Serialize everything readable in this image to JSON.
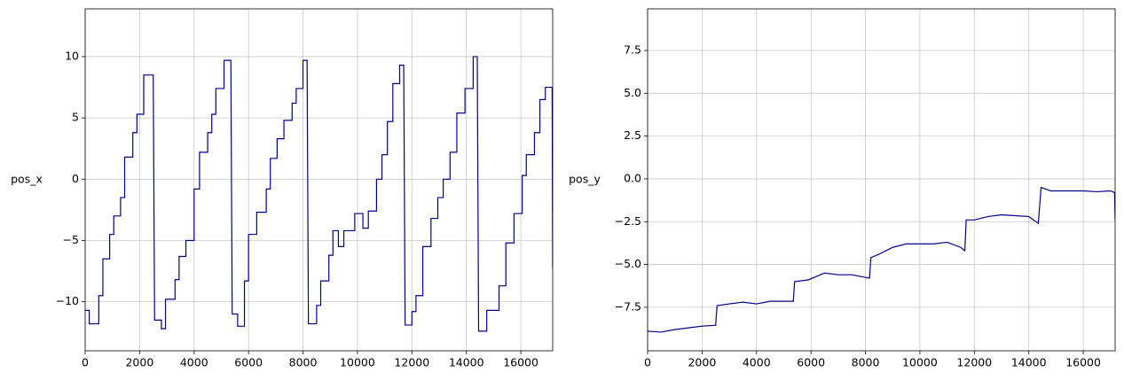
{
  "chart_data": [
    {
      "type": "line",
      "y_label": "pos_x",
      "color": "#00008b",
      "grid": true,
      "xlim": [
        0,
        17170
      ],
      "xticks": [
        0,
        2000,
        4000,
        6000,
        8000,
        10000,
        12000,
        14000,
        16000
      ],
      "ylim": [
        -14,
        13.9
      ],
      "yticks": [
        {
          "value": -10,
          "label": "−10"
        },
        {
          "value": -5,
          "label": "−5"
        },
        0,
        5,
        10
      ],
      "x": [
        0,
        150,
        150,
        500,
        500,
        650,
        650,
        900,
        900,
        1050,
        1050,
        1300,
        1300,
        1450,
        1450,
        1750,
        1750,
        1900,
        1900,
        2150,
        2150,
        2500,
        2550,
        2800,
        2800,
        2950,
        2950,
        3300,
        3300,
        3450,
        3450,
        3700,
        3700,
        4000,
        4000,
        4200,
        4200,
        4500,
        4500,
        4650,
        4650,
        4800,
        4800,
        5100,
        5100,
        5350,
        5400,
        5600,
        5600,
        5850,
        5850,
        6000,
        6000,
        6300,
        6300,
        6650,
        6650,
        6800,
        6800,
        7050,
        7050,
        7300,
        7300,
        7600,
        7600,
        7750,
        7750,
        8000,
        8000,
        8150,
        8200,
        8500,
        8500,
        8650,
        8650,
        8950,
        8950,
        9100,
        9100,
        9300,
        9300,
        9500,
        9500,
        9900,
        9900,
        10200,
        10200,
        10400,
        10400,
        10700,
        10700,
        10900,
        10900,
        11100,
        11100,
        11300,
        11300,
        11550,
        11550,
        11700,
        11750,
        12000,
        12000,
        12150,
        12150,
        12400,
        12400,
        12700,
        12700,
        12950,
        12950,
        13150,
        13150,
        13400,
        13400,
        13650,
        13650,
        13950,
        13950,
        14250,
        14250,
        14400,
        14450,
        14750,
        14750,
        15200,
        15200,
        15450,
        15450,
        15750,
        15750,
        16050,
        16050,
        16200,
        16200,
        16500,
        16500,
        16700,
        16700,
        16900,
        16900,
        17150,
        17170
      ],
      "values": [
        -10.7,
        -10.7,
        -11.8,
        -11.8,
        -9.5,
        -9.5,
        -6.5,
        -6.5,
        -4.5,
        -4.5,
        -3,
        -3,
        -1.5,
        -1.5,
        1.8,
        1.8,
        3.8,
        3.8,
        5.3,
        5.3,
        8.5,
        8.5,
        -11.5,
        -11.5,
        -12.2,
        -12.2,
        -9.8,
        -9.8,
        -8.2,
        -8.2,
        -6.3,
        -6.3,
        -5,
        -5,
        -0.8,
        -0.8,
        2.2,
        2.2,
        3.8,
        3.8,
        5.3,
        5.3,
        7.4,
        7.4,
        9.7,
        9.7,
        -11,
        -11,
        -12,
        -12,
        -8.3,
        -8.3,
        -4.5,
        -4.5,
        -2.7,
        -2.7,
        -0.8,
        -0.8,
        1.7,
        1.7,
        3.3,
        3.3,
        4.8,
        4.8,
        6.2,
        6.2,
        7.4,
        7.4,
        9.7,
        9.7,
        -11.8,
        -11.8,
        -10.3,
        -10.3,
        -8.3,
        -8.3,
        -6.2,
        -6.2,
        -4.2,
        -4.2,
        -5.5,
        -5.5,
        -4.2,
        -4.2,
        -2.8,
        -2.8,
        -4,
        -4,
        -2.6,
        -2.6,
        0,
        0,
        2,
        2,
        4.7,
        4.7,
        7.8,
        7.8,
        9.3,
        9.3,
        -11.9,
        -11.9,
        -10.8,
        -10.8,
        -9.5,
        -9.5,
        -5.5,
        -5.5,
        -3.2,
        -3.2,
        -1.5,
        -1.5,
        0,
        0,
        2.2,
        2.2,
        5.4,
        5.4,
        7.4,
        7.4,
        10,
        10,
        -12.4,
        -12.4,
        -10.7,
        -10.7,
        -8.7,
        -8.7,
        -5.2,
        -5.2,
        -2.8,
        -2.8,
        0.3,
        0.3,
        2,
        2,
        3.8,
        3.8,
        6.5,
        6.5,
        7.5,
        7.5,
        -7.3
      ]
    },
    {
      "type": "line",
      "y_label": "pos_y",
      "color": "#00008b",
      "grid": true,
      "xlim": [
        0,
        17170
      ],
      "xticks": [
        0,
        2000,
        4000,
        6000,
        8000,
        10000,
        12000,
        14000,
        16000
      ],
      "ylim": [
        -10.04,
        9.93
      ],
      "yticks": [
        {
          "value": -7.5,
          "label": "−7.5"
        },
        {
          "value": -5,
          "label": "−5.0"
        },
        {
          "value": -2.5,
          "label": "−2.5"
        },
        {
          "value": 0,
          "label": "0.0"
        },
        2.5,
        {
          "value": 5,
          "label": "5.0"
        },
        7.5
      ],
      "x": [
        0,
        500,
        1000,
        1500,
        2000,
        2500,
        2550,
        3000,
        3500,
        4000,
        4500,
        5350,
        5400,
        5900,
        6500,
        7000,
        7500,
        8150,
        8200,
        8500,
        9000,
        9500,
        10000,
        10500,
        11000,
        11500,
        11650,
        11700,
        12000,
        12500,
        13000,
        13500,
        14000,
        14350,
        14450,
        14800,
        15500,
        16000,
        16500,
        17000,
        17150,
        17170
      ],
      "values": [
        -8.9,
        -8.95,
        -8.8,
        -8.7,
        -8.6,
        -8.55,
        -7.4,
        -7.3,
        -7.2,
        -7.3,
        -7.15,
        -7.15,
        -6,
        -5.9,
        -5.5,
        -5.6,
        -5.6,
        -5.8,
        -4.6,
        -4.4,
        -4,
        -3.8,
        -3.8,
        -3.8,
        -3.7,
        -4,
        -4.2,
        -2.4,
        -2.4,
        -2.2,
        -2.1,
        -2.15,
        -2.2,
        -2.6,
        -0.5,
        -0.7,
        -0.7,
        -0.7,
        -0.75,
        -0.7,
        -0.8,
        -2.4
      ]
    }
  ]
}
